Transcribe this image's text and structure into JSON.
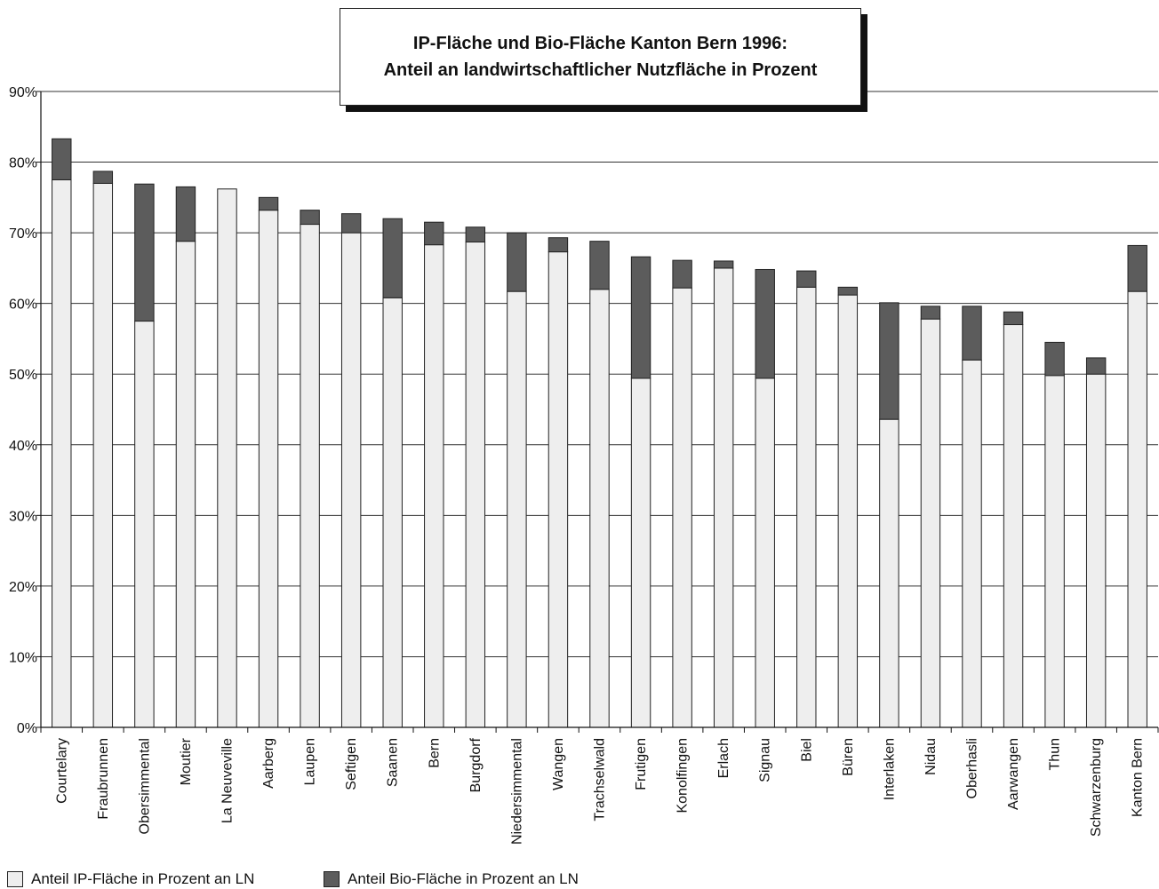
{
  "chart_data": {
    "type": "bar",
    "stacked": true,
    "title": "IP-Fläche und Bio-Fläche Kanton Bern 1996:",
    "subtitle": "Anteil an landwirtschaftlicher Nutzfläche in Prozent",
    "xlabel": "",
    "ylabel": "",
    "ylim": [
      0,
      90
    ],
    "yticks": [
      "0%",
      "10%",
      "20%",
      "30%",
      "40%",
      "50%",
      "60%",
      "70%",
      "80%",
      "90%"
    ],
    "grid": true,
    "legend_position": "bottom-left",
    "categories": [
      "Courtelary",
      "Fraubrunnen",
      "Obersimmental",
      "Moutier",
      "La Neuveville",
      "Aarberg",
      "Laupen",
      "Seftigen",
      "Saanen",
      "Bern",
      "Burgdorf",
      "Niedersimmental",
      "Wangen",
      "Trachselwald",
      "Frutigen",
      "Konolfingen",
      "Erlach",
      "Signau",
      "Biel",
      "Büren",
      "Interlaken",
      "Nidau",
      "Oberhasli",
      "Aarwangen",
      "Thun",
      "Schwarzenburg",
      "Kanton Bern"
    ],
    "series": [
      {
        "name": "Anteil IP-Fläche in Prozent an LN",
        "color": "#eeeeee",
        "values": [
          77.5,
          77.0,
          57.5,
          68.8,
          76.2,
          73.2,
          71.2,
          70.0,
          60.8,
          68.3,
          68.7,
          61.7,
          67.3,
          62.0,
          49.4,
          62.2,
          65.0,
          49.4,
          62.3,
          61.2,
          43.6,
          57.8,
          52.0,
          57.0,
          49.8,
          50.0,
          61.7
        ]
      },
      {
        "name": "Anteil Bio-Fläche in Prozent an LN",
        "color": "#5c5c5c",
        "values": [
          5.8,
          1.7,
          19.4,
          7.7,
          0.0,
          1.8,
          2.0,
          2.7,
          11.2,
          3.2,
          2.1,
          8.3,
          2.0,
          6.8,
          17.2,
          3.9,
          1.0,
          15.4,
          2.3,
          1.1,
          16.5,
          1.8,
          7.6,
          1.8,
          4.7,
          2.3,
          6.5
        ]
      }
    ]
  }
}
